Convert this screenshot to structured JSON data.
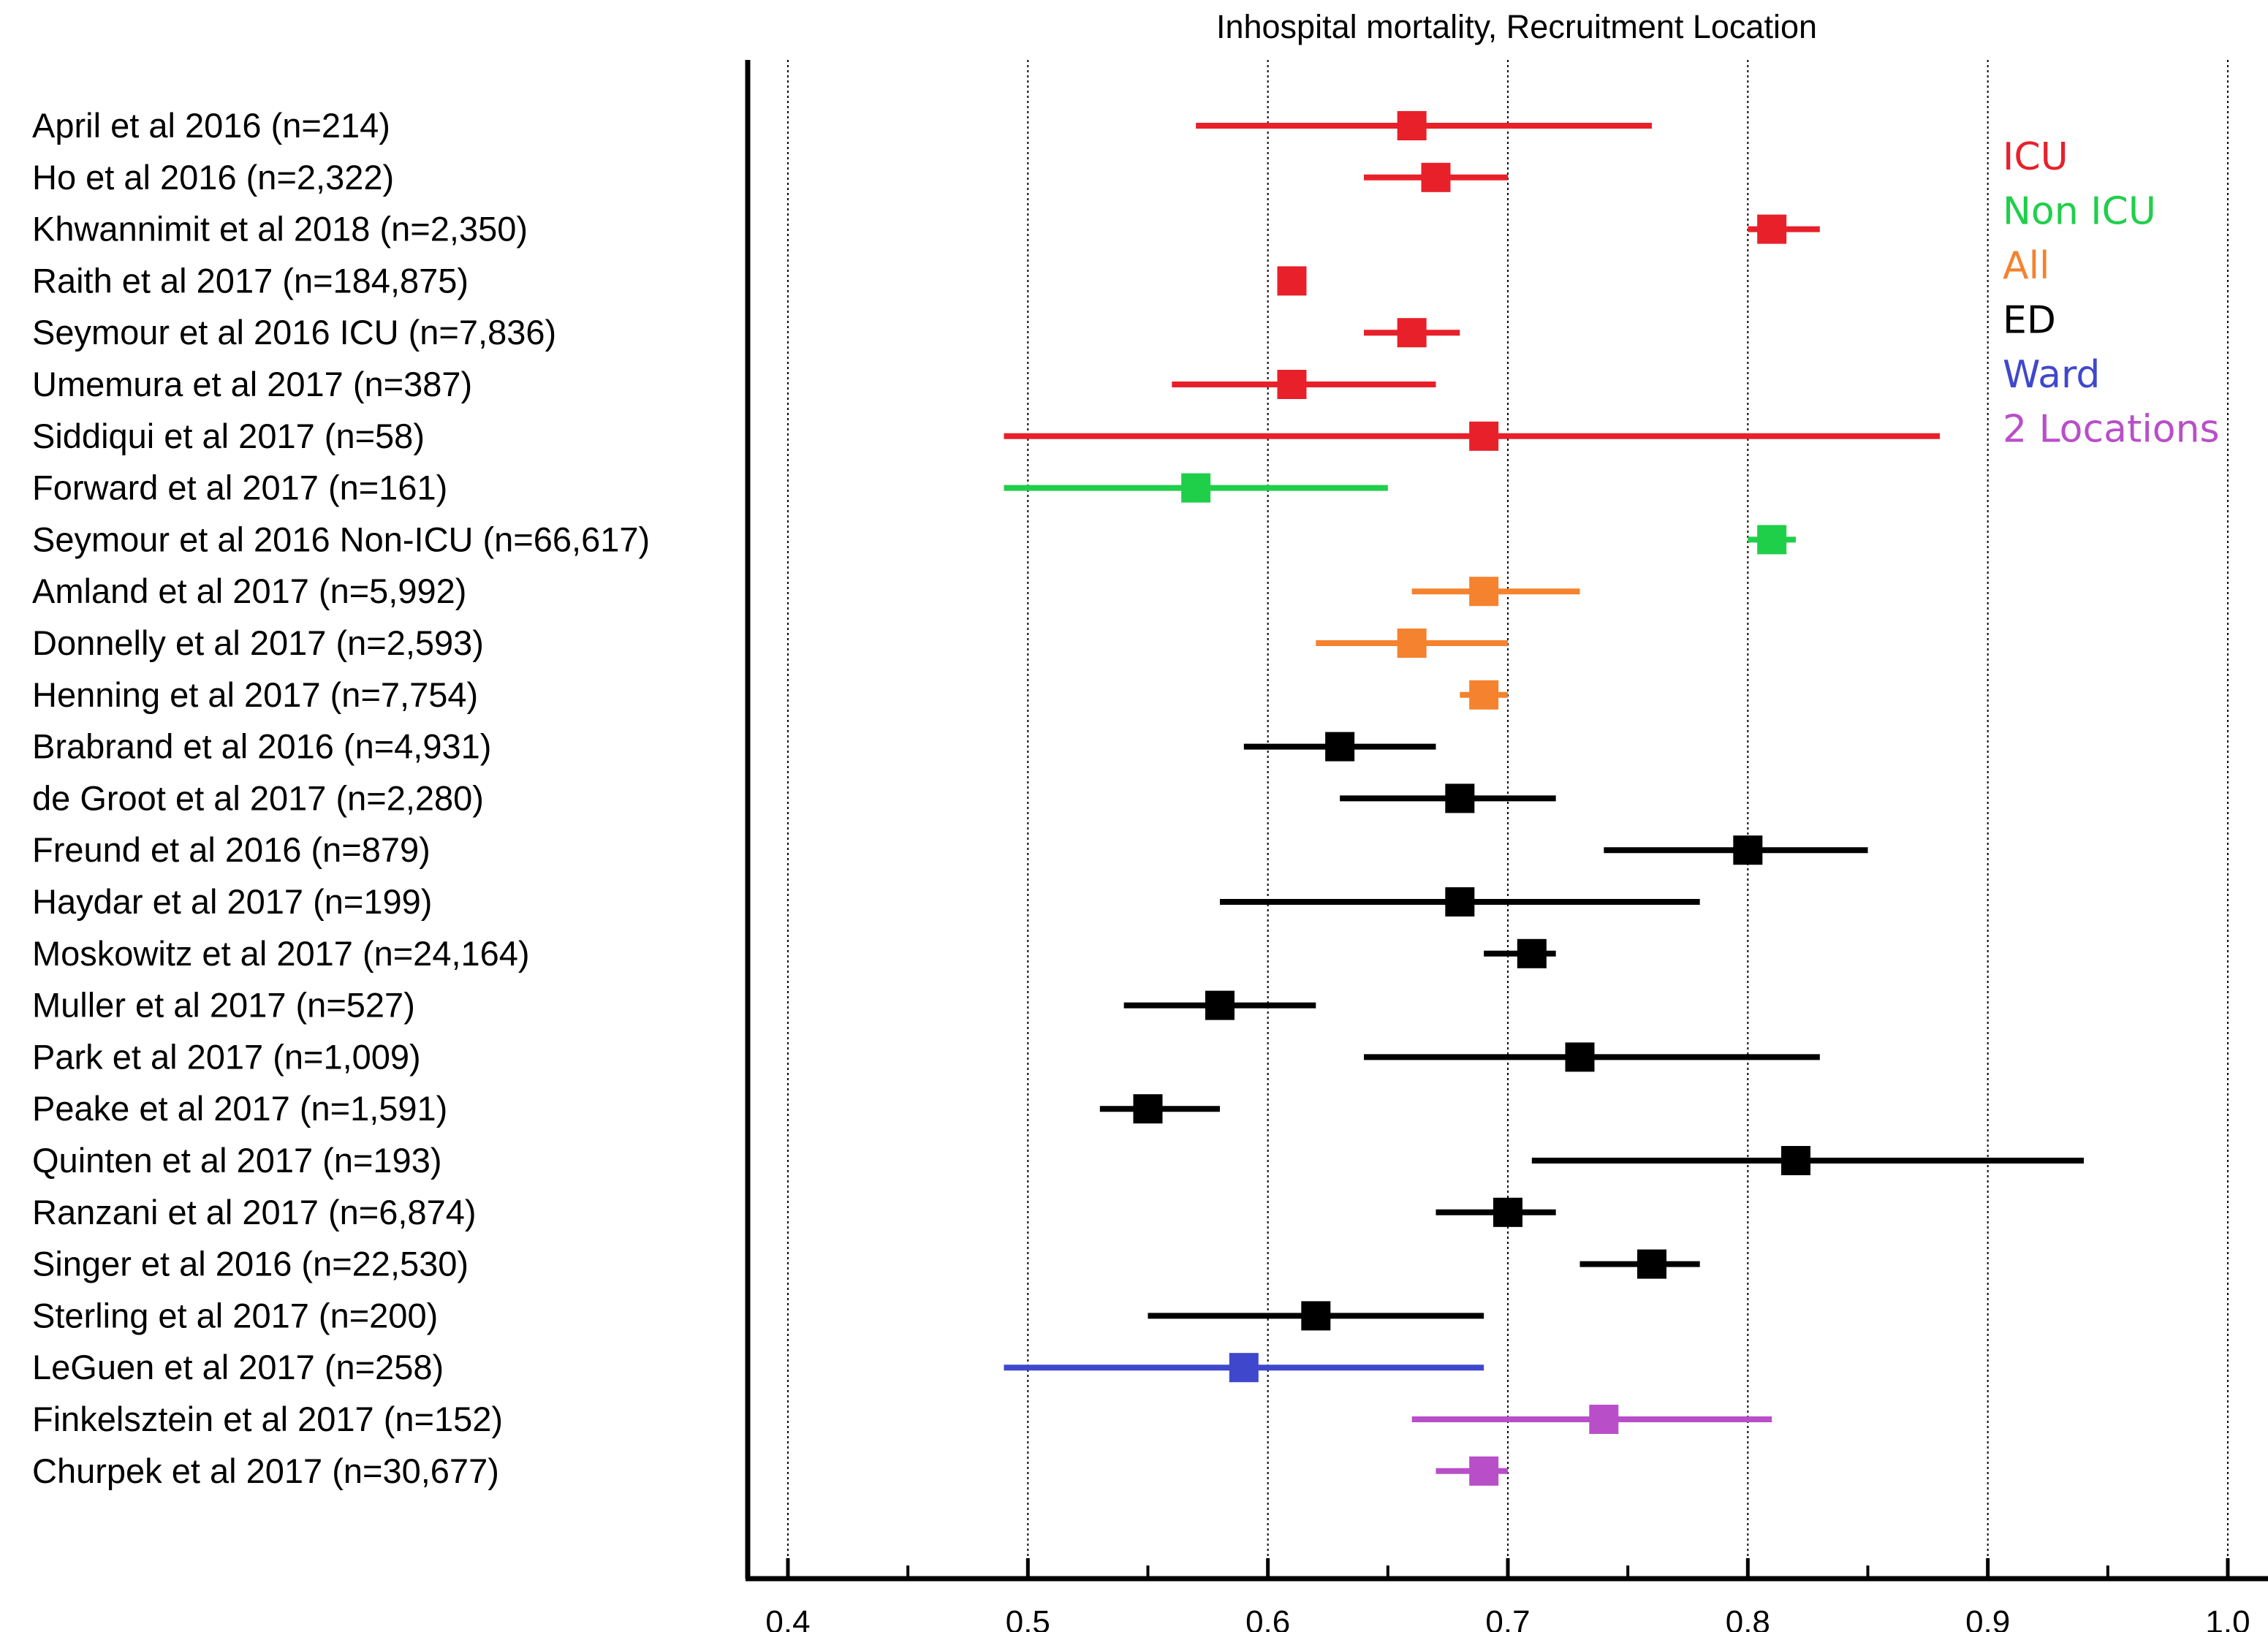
{
  "chart_data": {
    "type": "forest",
    "title": "Inhospital mortality, Recruitment Location",
    "xlim": [
      0.4,
      1.0
    ],
    "xticks": [
      "0.4",
      "0.5",
      "0.6",
      "0.7",
      "0.8",
      "0.9",
      "1.0"
    ],
    "xtick_values": [
      0.4,
      0.5,
      0.6,
      0.7,
      0.8,
      0.9,
      1.0
    ],
    "minor_ticks": [
      0.45,
      0.55,
      0.65,
      0.75,
      0.85,
      0.95
    ],
    "grid": "vertical dotted at major ticks",
    "legend_placement": "top-right",
    "groups": [
      {
        "name": "ICU",
        "color": "#e8202a"
      },
      {
        "name": "Non ICU",
        "color": "#1fcf4a"
      },
      {
        "name": "All",
        "color": "#f5822e"
      },
      {
        "name": "ED",
        "color": "#000000"
      },
      {
        "name": "Ward",
        "color": "#3f48cc"
      },
      {
        "name": "2 Locations",
        "color": "#b84fc8"
      }
    ],
    "studies": [
      {
        "label": "April et al 2016 (n=214)",
        "group": "ICU",
        "estimate": 0.66,
        "lower": 0.57,
        "upper": 0.76
      },
      {
        "label": "Ho et al 2016 (n=2,322)",
        "group": "ICU",
        "estimate": 0.67,
        "lower": 0.64,
        "upper": 0.7
      },
      {
        "label": "Khwannimit et al 2018 (n=2,350)",
        "group": "ICU",
        "estimate": 0.81,
        "lower": 0.8,
        "upper": 0.83
      },
      {
        "label": "Raith et al 2017 (n=184,875)",
        "group": "ICU",
        "estimate": 0.61,
        "lower": 0.61,
        "upper": 0.61
      },
      {
        "label": "Seymour et al 2016 ICU (n=7,836)",
        "group": "ICU",
        "estimate": 0.66,
        "lower": 0.64,
        "upper": 0.68
      },
      {
        "label": "Umemura et al 2017 (n=387)",
        "group": "ICU",
        "estimate": 0.61,
        "lower": 0.56,
        "upper": 0.67
      },
      {
        "label": "Siddiqui et al 2017 (n=58)",
        "group": "ICU",
        "estimate": 0.69,
        "lower": 0.49,
        "upper": 0.88
      },
      {
        "label": "Forward et al 2017 (n=161)",
        "group": "Non ICU",
        "estimate": 0.57,
        "lower": 0.49,
        "upper": 0.65
      },
      {
        "label": "Seymour et al 2016 Non-ICU (n=66,617)",
        "group": "Non ICU",
        "estimate": 0.81,
        "lower": 0.8,
        "upper": 0.82
      },
      {
        "label": "Amland et al 2017 (n=5,992)",
        "group": "All",
        "estimate": 0.69,
        "lower": 0.66,
        "upper": 0.73
      },
      {
        "label": "Donnelly et al 2017 (n=2,593)",
        "group": "All",
        "estimate": 0.66,
        "lower": 0.62,
        "upper": 0.7
      },
      {
        "label": "Henning et al 2017 (n=7,754)",
        "group": "All",
        "estimate": 0.69,
        "lower": 0.68,
        "upper": 0.7
      },
      {
        "label": "Brabrand et al 2016 (n=4,931)",
        "group": "ED",
        "estimate": 0.63,
        "lower": 0.59,
        "upper": 0.67
      },
      {
        "label": "de Groot et al 2017 (n=2,280)",
        "group": "ED",
        "estimate": 0.68,
        "lower": 0.63,
        "upper": 0.72
      },
      {
        "label": "Freund et al 2016 (n=879)",
        "group": "ED",
        "estimate": 0.8,
        "lower": 0.74,
        "upper": 0.85
      },
      {
        "label": "Haydar et al 2017 (n=199)",
        "group": "ED",
        "estimate": 0.68,
        "lower": 0.58,
        "upper": 0.78
      },
      {
        "label": "Moskowitz et al 2017 (n=24,164)",
        "group": "ED",
        "estimate": 0.71,
        "lower": 0.69,
        "upper": 0.72
      },
      {
        "label": "Muller et al 2017 (n=527)",
        "group": "ED",
        "estimate": 0.58,
        "lower": 0.54,
        "upper": 0.62
      },
      {
        "label": "Park et al 2017 (n=1,009)",
        "group": "ED",
        "estimate": 0.73,
        "lower": 0.64,
        "upper": 0.83
      },
      {
        "label": "Peake et al 2017 (n=1,591)",
        "group": "ED",
        "estimate": 0.55,
        "lower": 0.53,
        "upper": 0.58
      },
      {
        "label": "Quinten et al 2017 (n=193)",
        "group": "ED",
        "estimate": 0.82,
        "lower": 0.71,
        "upper": 0.94
      },
      {
        "label": "Ranzani et al 2017 (n=6,874)",
        "group": "ED",
        "estimate": 0.7,
        "lower": 0.67,
        "upper": 0.72
      },
      {
        "label": "Singer et al 2016 (n=22,530)",
        "group": "ED",
        "estimate": 0.76,
        "lower": 0.73,
        "upper": 0.78
      },
      {
        "label": "Sterling et al 2017 (n=200)",
        "group": "ED",
        "estimate": 0.62,
        "lower": 0.55,
        "upper": 0.69
      },
      {
        "label": "LeGuen et al 2017 (n=258)",
        "group": "Ward",
        "estimate": 0.59,
        "lower": 0.49,
        "upper": 0.69
      },
      {
        "label": "Finkelsztein et al 2017 (n=152)",
        "group": "2 Locations",
        "estimate": 0.74,
        "lower": 0.66,
        "upper": 0.81
      },
      {
        "label": "Churpek et al 2017 (n=30,677)",
        "group": "2 Locations",
        "estimate": 0.69,
        "lower": 0.67,
        "upper": 0.7
      }
    ]
  }
}
